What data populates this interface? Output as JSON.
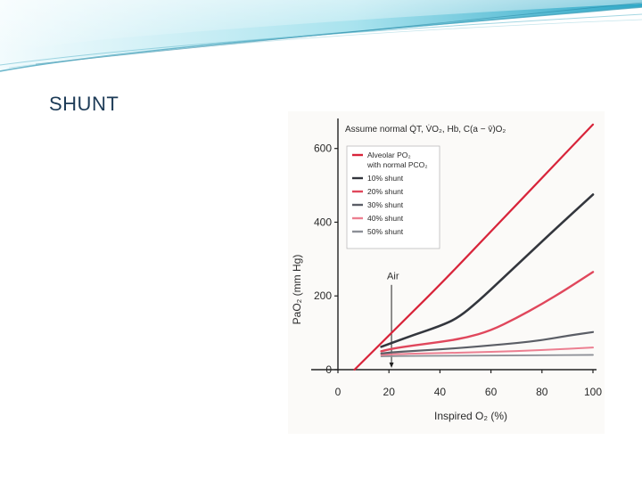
{
  "slide": {
    "title": "SHUNT"
  },
  "chart_data": {
    "type": "line",
    "annotation_top": "Assume normal Q̇T, V̇O₂, Hb, C(a − v̄)O₂",
    "xlabel": "Inspired O₂ (%)",
    "ylabel": "PaO₂ (mm Hg)",
    "xlim": [
      0,
      100
    ],
    "ylim": [
      0,
      650
    ],
    "xticks": [
      0,
      20,
      40,
      60,
      80,
      100
    ],
    "yticks": [
      0,
      200,
      400,
      600
    ],
    "xtick_labels": [
      "0",
      "20",
      "40",
      "60",
      "80",
      "100"
    ],
    "ytick_labels": [
      "0",
      "200",
      "400",
      "600"
    ],
    "marker": {
      "label": "Air",
      "x": 21
    },
    "legend_position": "top-left",
    "series": [
      {
        "name": "Alveolar PO₂ with normal PCO₂",
        "color": "#d8243a",
        "width": 2.2,
        "points": [
          [
            6.5,
            0
          ],
          [
            21,
            100
          ],
          [
            40,
            230
          ],
          [
            60,
            375
          ],
          [
            80,
            520
          ],
          [
            100,
            665
          ]
        ]
      },
      {
        "name": "10% shunt",
        "color": "#33363d",
        "width": 2.6,
        "points": [
          [
            17,
            62
          ],
          [
            21,
            72
          ],
          [
            30,
            95
          ],
          [
            40,
            118
          ],
          [
            47,
            140
          ],
          [
            55,
            185
          ],
          [
            65,
            250
          ],
          [
            75,
            315
          ],
          [
            85,
            380
          ],
          [
            100,
            475
          ]
        ]
      },
      {
        "name": "20% shunt",
        "color": "#e0475c",
        "width": 2.4,
        "points": [
          [
            17,
            50
          ],
          [
            21,
            57
          ],
          [
            30,
            66
          ],
          [
            40,
            75
          ],
          [
            50,
            86
          ],
          [
            60,
            106
          ],
          [
            70,
            140
          ],
          [
            80,
            178
          ],
          [
            90,
            220
          ],
          [
            100,
            265
          ]
        ]
      },
      {
        "name": "30% shunt",
        "color": "#5b5e66",
        "width": 2.2,
        "points": [
          [
            17,
            44
          ],
          [
            21,
            47
          ],
          [
            30,
            51
          ],
          [
            40,
            55
          ],
          [
            50,
            60
          ],
          [
            60,
            66
          ],
          [
            70,
            72
          ],
          [
            80,
            80
          ],
          [
            90,
            92
          ],
          [
            100,
            102
          ]
        ]
      },
      {
        "name": "40% shunt",
        "color": "#ec7f91",
        "width": 2.0,
        "points": [
          [
            17,
            40
          ],
          [
            21,
            42
          ],
          [
            40,
            45
          ],
          [
            60,
            48
          ],
          [
            80,
            53
          ],
          [
            100,
            60
          ]
        ]
      },
      {
        "name": "50% shunt",
        "color": "#8c8f96",
        "width": 1.8,
        "points": [
          [
            17,
            36
          ],
          [
            21,
            37
          ],
          [
            50,
            38
          ],
          [
            80,
            39
          ],
          [
            100,
            40
          ]
        ]
      }
    ]
  }
}
